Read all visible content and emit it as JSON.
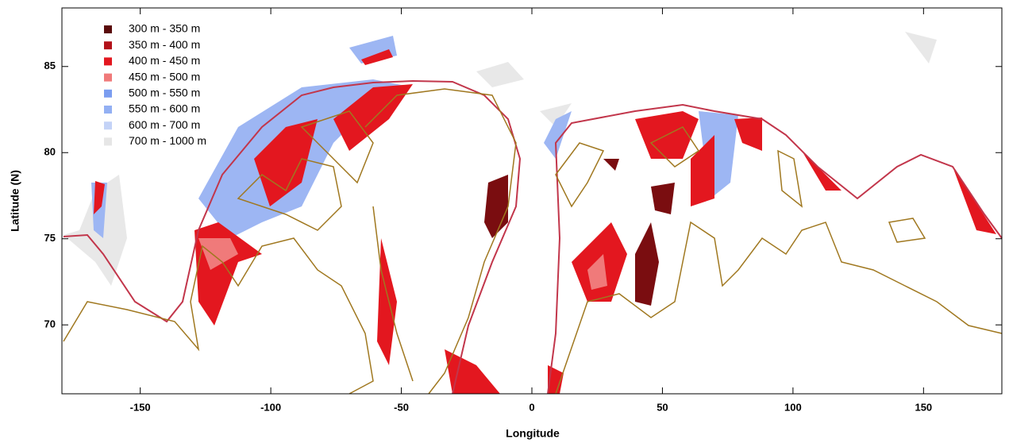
{
  "chart_data": {
    "type": "map",
    "xlabel": "Longitude",
    "ylabel": "Latitude (N)",
    "xlim": [
      -180,
      180
    ],
    "ylim": [
      66,
      88.4
    ],
    "xticks": [
      -150,
      -100,
      -50,
      0,
      50,
      100,
      150
    ],
    "yticks": [
      70,
      75,
      80,
      85
    ],
    "legend_items": [
      {
        "name": "300 m - 350 m",
        "color": "#5a0a0a"
      },
      {
        "name": "350 m - 400 m",
        "color": "#b3121a"
      },
      {
        "name": "400 m - 450 m",
        "color": "#e3171f"
      },
      {
        "name": "450 m - 500 m",
        "color": "#f07a7a"
      },
      {
        "name": "500 m - 550 m",
        "color": "#7b9df0"
      },
      {
        "name": "550 m - 600 m",
        "color": "#93b0f3"
      },
      {
        "name": "600 m - 700 m",
        "color": "#c4d3f7"
      },
      {
        "name": "700 m - 1000 m",
        "color": "#e6e6e6"
      }
    ]
  }
}
